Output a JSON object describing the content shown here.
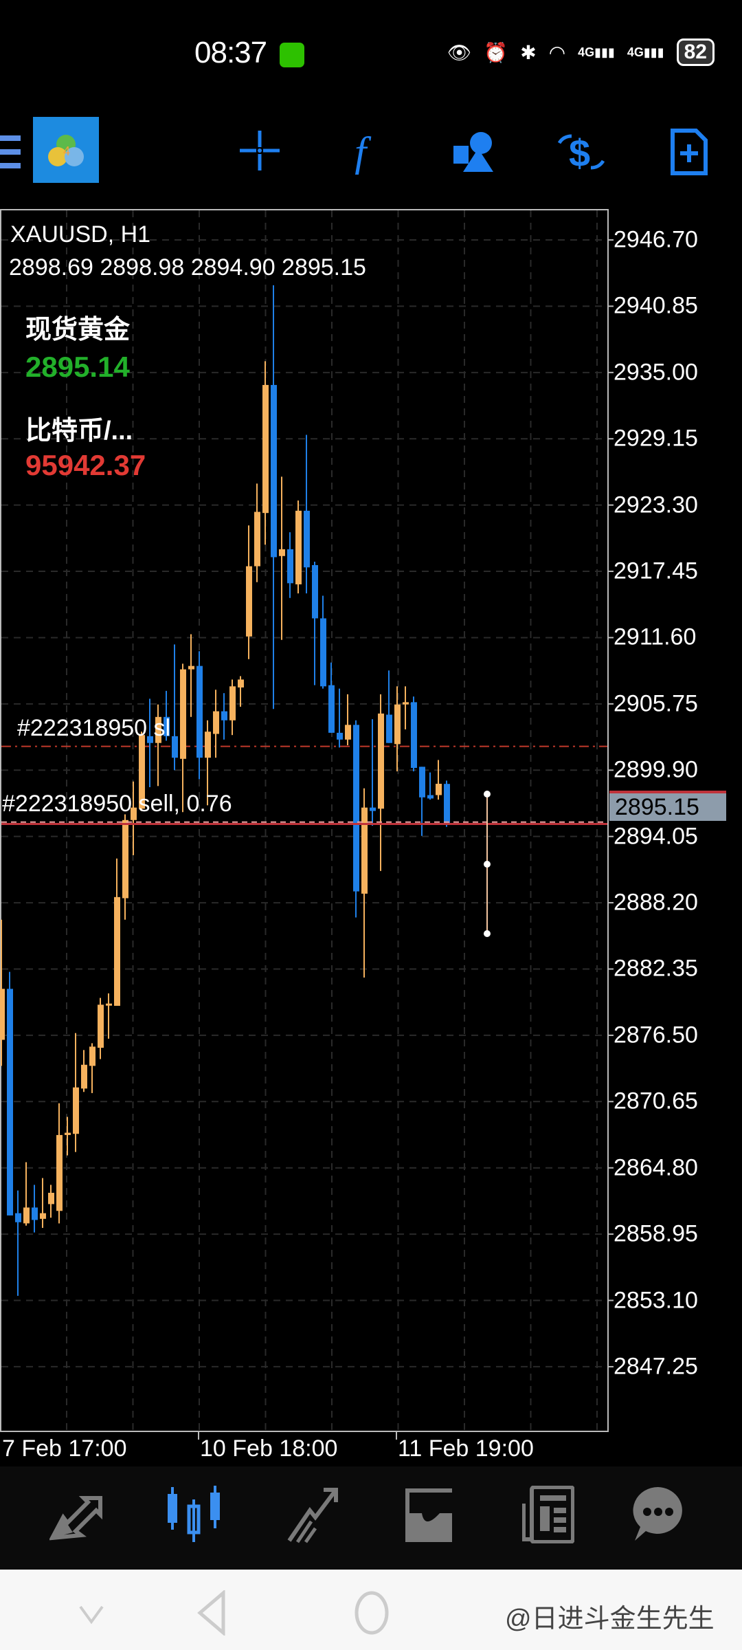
{
  "status_bar": {
    "time": "08:37",
    "battery": "82",
    "network_1": "4G",
    "network_2": "4G"
  },
  "toolbar": {
    "icons": [
      "menu-icon",
      "metatrader-logo",
      "crosshair-icon",
      "indicator-f-icon",
      "objects-icon",
      "trade-icon",
      "new-order-icon"
    ]
  },
  "chart": {
    "symbol_title": "XAUUSD, H1",
    "ohlc_line": "2898.69 2898.98 2894.90 2895.15",
    "quotes": [
      {
        "name": "现货黄金",
        "price": "2895.14",
        "color": "#22b02a"
      },
      {
        "name": "比特币/...",
        "price": "95942.37",
        "color": "#e23a34"
      }
    ],
    "order_labels": {
      "sl": "#222318950 sl",
      "sell": "#222318950 sell, 0.76"
    },
    "current_price": "2895.15",
    "colors": {
      "bull": "#f6b25e",
      "bear": "#1f80e8",
      "sl_line": "#c0392b",
      "price_line": "#c0333a"
    },
    "chart_data": {
      "type": "candlestick",
      "timeframe": "H1",
      "y_ticks": [
        "2946.70",
        "2940.85",
        "2935.00",
        "2929.15",
        "2923.30",
        "2917.45",
        "2911.60",
        "2905.75",
        "2899.90",
        "2894.05",
        "2888.20",
        "2882.35",
        "2876.50",
        "2870.65",
        "2864.80",
        "2858.95",
        "2853.10",
        "2847.25"
      ],
      "ylim": [
        2843.5,
        2950.5
      ],
      "x_tick_labels": [
        "7 Feb 17:00",
        "10 Feb 18:00",
        "11 Feb 19:00"
      ],
      "sl_price": 2902.0,
      "open_price": 2895.2,
      "ohlc": [
        [
          2876.1,
          2886.7,
          2873.8,
          2880.6
        ],
        [
          2880.6,
          2882.1,
          2860.6,
          2860.6
        ],
        [
          2860.8,
          2862.8,
          2853.5,
          2860.0
        ],
        [
          2859.9,
          2865.3,
          2859.7,
          2861.3
        ],
        [
          2861.3,
          2863.3,
          2859.1,
          2860.2
        ],
        [
          2860.3,
          2863.9,
          2859.5,
          2860.8
        ],
        [
          2861.6,
          2863.3,
          2860.4,
          2862.6
        ],
        [
          2861.0,
          2870.5,
          2859.9,
          2867.7
        ],
        [
          2867.7,
          2869.3,
          2865.9,
          2867.9
        ],
        [
          2867.8,
          2876.7,
          2866.2,
          2871.9
        ],
        [
          2871.8,
          2875.2,
          2871.5,
          2873.9
        ],
        [
          2873.8,
          2875.8,
          2871.4,
          2875.5
        ],
        [
          2875.4,
          2879.8,
          2874.4,
          2879.2
        ],
        [
          2879.2,
          2880.2,
          2876.2,
          2879.3
        ],
        [
          2879.1,
          2892.1,
          2879.1,
          2888.7
        ],
        [
          2888.6,
          2896.0,
          2886.7,
          2895.5
        ],
        [
          2895.5,
          2898.9,
          2892.4,
          2896.6
        ],
        [
          2896.5,
          2903.3,
          2896.3,
          2903.0
        ],
        [
          2902.9,
          2906.2,
          2898.4,
          2902.3
        ],
        [
          2902.3,
          2905.7,
          2898.5,
          2904.6
        ],
        [
          2904.6,
          2906.9,
          2902.5,
          2902.9
        ],
        [
          2902.9,
          2911.0,
          2899.9,
          2901.0
        ],
        [
          2900.9,
          2909.3,
          2896.2,
          2908.8
        ],
        [
          2908.8,
          2911.9,
          2904.6,
          2909.1
        ],
        [
          2909.1,
          2910.4,
          2899.1,
          2901.0
        ],
        [
          2901.0,
          2904.3,
          2896.8,
          2903.3
        ],
        [
          2903.1,
          2907.0,
          2901.0,
          2905.1
        ],
        [
          2905.1,
          2906.7,
          2902.6,
          2904.3
        ],
        [
          2904.3,
          2907.9,
          2903.0,
          2907.3
        ],
        [
          2907.2,
          2908.2,
          2905.5,
          2907.9
        ],
        [
          2911.7,
          2921.5,
          2909.7,
          2917.9
        ],
        [
          2917.9,
          2925.2,
          2916.5,
          2922.7
        ],
        [
          2922.6,
          2936.0,
          2919.8,
          2933.9
        ],
        [
          2933.9,
          2942.7,
          2905.3,
          2918.7
        ],
        [
          2918.8,
          2925.8,
          2911.4,
          2919.4
        ],
        [
          2919.4,
          2920.9,
          2915.1,
          2916.4
        ],
        [
          2916.3,
          2923.7,
          2915.5,
          2922.8
        ],
        [
          2922.8,
          2929.5,
          2915.5,
          2917.8
        ],
        [
          2918.0,
          2918.3,
          2907.4,
          2913.3
        ],
        [
          2913.3,
          2915.3,
          2907.1,
          2907.3
        ],
        [
          2907.4,
          2909.4,
          2903.2,
          2903.2
        ],
        [
          2903.2,
          2907.1,
          2901.9,
          2902.6
        ],
        [
          2902.6,
          2906.6,
          2902.1,
          2903.9
        ],
        [
          2903.9,
          2904.3,
          2886.9,
          2889.2
        ],
        [
          2889.0,
          2898.3,
          2881.6,
          2896.6
        ],
        [
          2896.6,
          2904.4,
          2895.0,
          2896.3
        ],
        [
          2896.5,
          2906.6,
          2891.0,
          2904.9
        ],
        [
          2904.8,
          2908.7,
          2902.3,
          2902.3
        ],
        [
          2902.2,
          2907.3,
          2899.8,
          2905.7
        ],
        [
          2905.7,
          2907.3,
          2903.5,
          2905.9
        ],
        [
          2905.9,
          2906.4,
          2899.8,
          2900.1
        ],
        [
          2900.2,
          2900.2,
          2894.1,
          2897.5
        ],
        [
          2897.7,
          2899.7,
          2897.3,
          2897.4
        ],
        [
          2897.7,
          2900.8,
          2897.3,
          2898.7
        ],
        [
          2898.69,
          2898.98,
          2894.9,
          2895.15
        ]
      ]
    }
  },
  "bottom_nav": {
    "items": [
      {
        "icon": "quotes-icon",
        "active": false
      },
      {
        "icon": "chart-icon",
        "active": true
      },
      {
        "icon": "trade-icon",
        "active": false
      },
      {
        "icon": "history-icon",
        "active": false
      },
      {
        "icon": "news-icon",
        "active": false
      },
      {
        "icon": "messages-icon",
        "active": false
      }
    ]
  },
  "watermark": "@日进斗金生先生"
}
